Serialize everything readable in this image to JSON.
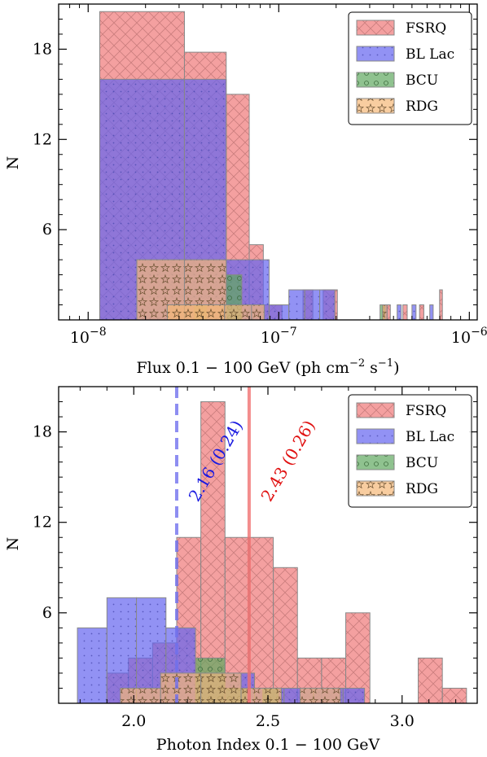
{
  "colors": {
    "FSRQ": "#f08080",
    "BL Lac": "#6464f0",
    "BCU": "#5fa85f",
    "RDG": "#f5b878"
  },
  "chart_data": [
    {
      "type": "bar",
      "xscale": "log",
      "xlim": [
        0.007,
        1.1
      ],
      "ylim": [
        0,
        21
      ],
      "xlabel_parts": {
        "main": "Flux 0.1 − 100 GeV (ph cm",
        "sup1": "−2",
        "mid": " s",
        "sup2": "−1",
        "end": ")"
      },
      "ylabel": "N",
      "yticks": [
        6,
        12,
        18
      ],
      "xticks": [
        {
          "value": 0.01,
          "base": "10",
          "exp": "−8"
        },
        {
          "value": 0.1,
          "base": "10",
          "exp": "−7"
        },
        {
          "value": 1.0,
          "base": "10",
          "exp": "−6"
        }
      ],
      "x_unit_note": "x values in units of 1e-6 ph cm^-2 s^-1",
      "legend": [
        "FSRQ",
        "BL Lac",
        "BCU",
        "RDG"
      ],
      "legend_position": "upper right",
      "series": [
        {
          "name": "FSRQ",
          "bins": [
            [
              0.0115,
              0.032,
              20.5
            ],
            [
              0.032,
              0.053,
              17.8
            ],
            [
              0.053,
              0.07,
              15.0
            ],
            [
              0.07,
              0.083,
              5.0
            ],
            [
              0.083,
              0.104,
              1.0
            ],
            [
              0.134,
              0.151,
              2.0
            ],
            [
              0.171,
              0.203,
              2.0
            ],
            [
              0.362,
              0.385,
              1.0
            ],
            [
              0.448,
              0.472,
              1.0
            ],
            [
              0.548,
              0.577,
              1.0
            ],
            [
              0.698,
              0.722,
              2.0
            ]
          ]
        },
        {
          "name": "BL Lac",
          "bins": [
            [
              0.0115,
              0.032,
              16.0
            ],
            [
              0.032,
              0.053,
              16.0
            ],
            [
              0.053,
              0.089,
              4.0
            ],
            [
              0.089,
              0.113,
              1.0
            ],
            [
              0.113,
              0.137,
              2.0
            ],
            [
              0.137,
              0.164,
              2.0
            ],
            [
              0.164,
              0.197,
              2.0
            ],
            [
              0.352,
              0.37,
              1.0
            ],
            [
              0.418,
              0.439,
              1.0
            ],
            [
              0.5,
              0.525,
              1.0
            ],
            [
              0.62,
              0.646,
              1.0
            ]
          ]
        },
        {
          "name": "BCU",
          "bins": [
            [
              0.053,
              0.064,
              3.0
            ],
            [
              0.036,
              0.042,
              1.0
            ],
            [
              0.34,
              0.36,
              1.0
            ]
          ]
        },
        {
          "name": "RDG",
          "bins": [
            [
              0.018,
              0.032,
              4.0
            ],
            [
              0.032,
              0.053,
              4.0
            ],
            [
              0.026,
              0.052,
              1.0
            ],
            [
              0.052,
              0.072,
              1.0
            ],
            [
              0.072,
              0.084,
              1.0
            ],
            [
              0.35,
              0.37,
              1.0
            ]
          ]
        }
      ]
    },
    {
      "type": "bar",
      "xscale": "linear",
      "xlim": [
        1.72,
        3.28
      ],
      "ylim": [
        0,
        21
      ],
      "xlabel": "Photon Index 0.1 − 100 GeV",
      "ylabel": "N",
      "yticks": [
        6,
        12,
        18
      ],
      "xticks": [
        2.0,
        2.5,
        3.0
      ],
      "legend": [
        "FSRQ",
        "BL Lac",
        "BCU",
        "RDG"
      ],
      "legend_position": "upper right",
      "series": [
        {
          "name": "FSRQ",
          "bins": [
            [
              1.9,
              1.98,
              2.0
            ],
            [
              1.98,
              2.07,
              3.0
            ],
            [
              2.07,
              2.16,
              4.0
            ],
            [
              2.16,
              2.25,
              11.0
            ],
            [
              2.25,
              2.34,
              20.0
            ],
            [
              2.34,
              2.43,
              11.0
            ],
            [
              2.43,
              2.52,
              11.0
            ],
            [
              2.52,
              2.61,
              9.0
            ],
            [
              2.61,
              2.7,
              3.0
            ],
            [
              2.7,
              2.79,
              3.0
            ],
            [
              2.79,
              2.88,
              6.0
            ],
            [
              2.88,
              2.97,
              0.0
            ],
            [
              2.97,
              3.06,
              0.0
            ],
            [
              3.06,
              3.15,
              3.0
            ],
            [
              3.15,
              3.24,
              1.0
            ]
          ]
        },
        {
          "name": "BL Lac",
          "bins": [
            [
              1.79,
              1.9,
              5.0
            ],
            [
              1.9,
              2.01,
              7.0
            ],
            [
              2.01,
              2.12,
              7.0
            ],
            [
              2.12,
              2.23,
              5.0
            ],
            [
              2.23,
              2.34,
              2.0
            ],
            [
              2.34,
              2.45,
              2.0
            ],
            [
              2.45,
              2.56,
              1.0
            ],
            [
              2.56,
              2.67,
              1.0
            ],
            [
              2.67,
              2.78,
              1.0
            ],
            [
              2.78,
              2.86,
              1.0
            ]
          ]
        },
        {
          "name": "BCU",
          "bins": [
            [
              2.23,
              2.34,
              3.0
            ],
            [
              2.34,
              2.42,
              1.0
            ],
            [
              2.48,
              2.54,
              1.0
            ]
          ]
        },
        {
          "name": "RDG",
          "bins": [
            [
              1.95,
              2.1,
              1.0
            ],
            [
              2.1,
              2.25,
              2.0
            ],
            [
              2.25,
              2.4,
              2.0
            ],
            [
              2.4,
              2.55,
              1.0
            ],
            [
              2.62,
              2.77,
              1.0
            ]
          ]
        }
      ],
      "vlines": [
        {
          "series": "BL Lac",
          "x": 2.16,
          "style": "dashed",
          "label": "2.16 (0.24)"
        },
        {
          "series": "FSRQ",
          "x": 2.43,
          "style": "solid",
          "label": "2.43 (0.26)"
        }
      ]
    }
  ]
}
